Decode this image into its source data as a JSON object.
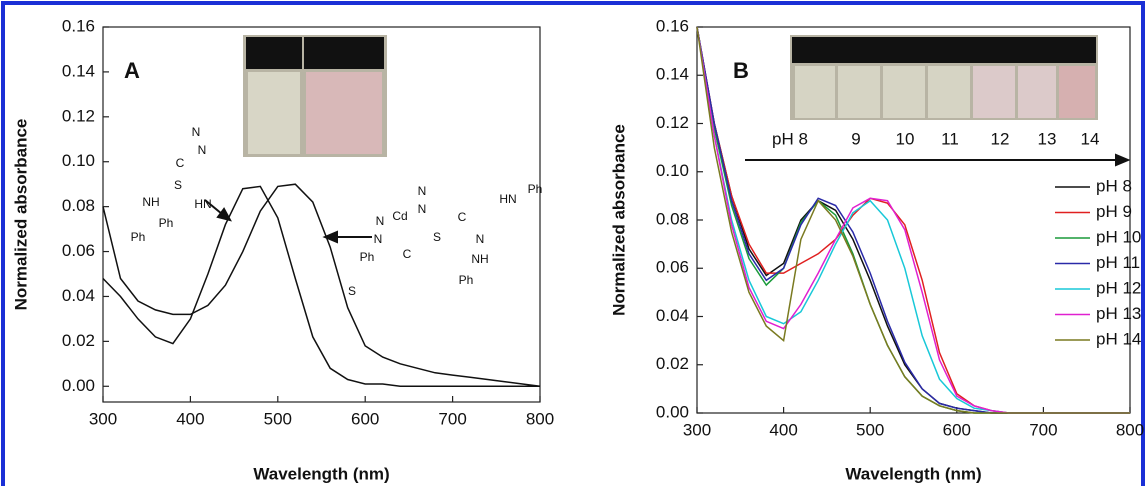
{
  "chart_data": [
    {
      "type": "line",
      "panel_label": "A",
      "x_label": "Wavelength (nm)",
      "y_label": "Normalized absorbance",
      "x": [
        300,
        320,
        340,
        360,
        380,
        400,
        420,
        440,
        460,
        480,
        500,
        520,
        540,
        560,
        580,
        600,
        620,
        640,
        660,
        680,
        700,
        720,
        740,
        760,
        780,
        800
      ],
      "series": [
        {
          "color": "#111111",
          "values": [
            0.048,
            0.04,
            0.03,
            0.022,
            0.019,
            0.03,
            0.05,
            0.072,
            0.088,
            0.089,
            0.075,
            0.048,
            0.022,
            0.008,
            0.003,
            0.001,
            0.001,
            0,
            0,
            0,
            0,
            0,
            0,
            0,
            0,
            0
          ]
        },
        {
          "color": "#111111",
          "values": [
            0.08,
            0.048,
            0.038,
            0.034,
            0.032,
            0.032,
            0.036,
            0.045,
            0.06,
            0.078,
            0.089,
            0.09,
            0.082,
            0.062,
            0.035,
            0.018,
            0.013,
            0.01,
            0.008,
            0.006,
            0.005,
            0.004,
            0.003,
            0.002,
            0.001,
            0
          ]
        }
      ],
      "xlim": [
        300,
        800
      ],
      "xticks": [
        300,
        400,
        500,
        600,
        700,
        800
      ],
      "ylim": [
        -0.007,
        0.16
      ],
      "yticks": [
        {
          "value": 0,
          "label": "0.00"
        },
        {
          "value": 0.02,
          "label": "0.02"
        },
        {
          "value": 0.04,
          "label": "0.04"
        },
        {
          "value": 0.06,
          "label": "0.06"
        },
        {
          "value": 0.08,
          "label": "0.08"
        },
        {
          "value": 0.1,
          "label": "0.10"
        },
        {
          "value": 0.12,
          "label": "0.12"
        },
        {
          "value": 0.14,
          "label": "0.14"
        },
        {
          "value": 0.16,
          "label": "0.16"
        }
      ],
      "annotations": [
        "Ph",
        "N",
        "N",
        "C",
        "S",
        "HN",
        "NH",
        "Ph",
        "Ph",
        "N",
        "N",
        "Cd",
        "S",
        "C",
        "N",
        "N",
        "Ph",
        "S",
        "C",
        "N",
        "NH",
        "Ph",
        "HN",
        "Ph"
      ]
    },
    {
      "type": "line",
      "panel_label": "B",
      "x_label": "Wavelength (nm)",
      "y_label": "Normalized absorbance",
      "x": [
        300,
        320,
        340,
        360,
        380,
        400,
        420,
        440,
        460,
        480,
        500,
        520,
        540,
        560,
        580,
        600,
        620,
        640,
        660,
        680,
        700,
        720,
        740,
        760,
        780,
        800
      ],
      "series": [
        {
          "name": "pH 8",
          "color": "#111111",
          "values": [
            0.16,
            0.12,
            0.09,
            0.068,
            0.057,
            0.062,
            0.08,
            0.088,
            0.084,
            0.072,
            0.055,
            0.036,
            0.02,
            0.01,
            0.004,
            0.002,
            0.001,
            0,
            0,
            0,
            0,
            0,
            0,
            0,
            0,
            0
          ]
        },
        {
          "name": "pH 9",
          "color": "#e02020",
          "values": [
            0.16,
            0.12,
            0.09,
            0.07,
            0.058,
            0.058,
            0.062,
            0.066,
            0.072,
            0.082,
            0.089,
            0.087,
            0.078,
            0.055,
            0.025,
            0.008,
            0.003,
            0.001,
            0,
            0,
            0,
            0,
            0,
            0,
            0,
            0
          ]
        },
        {
          "name": "pH 10",
          "color": "#1a9a3a",
          "values": [
            0.16,
            0.118,
            0.086,
            0.064,
            0.053,
            0.06,
            0.079,
            0.088,
            0.082,
            0.066,
            0.045,
            0.028,
            0.015,
            0.007,
            0.003,
            0.001,
            0,
            0,
            0,
            0,
            0,
            0,
            0,
            0,
            0,
            0
          ]
        },
        {
          "name": "pH 11",
          "color": "#2a2aa8",
          "values": [
            0.16,
            0.12,
            0.088,
            0.066,
            0.055,
            0.06,
            0.078,
            0.089,
            0.086,
            0.075,
            0.058,
            0.038,
            0.021,
            0.01,
            0.004,
            0.002,
            0.001,
            0,
            0,
            0,
            0,
            0,
            0,
            0,
            0,
            0
          ]
        },
        {
          "name": "pH 12",
          "color": "#18c8d8",
          "values": [
            0.16,
            0.115,
            0.08,
            0.055,
            0.04,
            0.037,
            0.042,
            0.055,
            0.07,
            0.083,
            0.088,
            0.08,
            0.06,
            0.032,
            0.014,
            0.006,
            0.002,
            0.001,
            0,
            0,
            0,
            0,
            0,
            0,
            0,
            0
          ]
        },
        {
          "name": "pH 13",
          "color": "#e020d0",
          "values": [
            0.16,
            0.115,
            0.078,
            0.052,
            0.038,
            0.035,
            0.045,
            0.058,
            0.072,
            0.085,
            0.089,
            0.088,
            0.076,
            0.05,
            0.022,
            0.007,
            0.003,
            0.001,
            0,
            0,
            0,
            0,
            0,
            0,
            0,
            0
          ]
        },
        {
          "name": "pH 14",
          "color": "#7a7a20",
          "values": [
            0.16,
            0.11,
            0.075,
            0.05,
            0.036,
            0.03,
            0.072,
            0.088,
            0.08,
            0.065,
            0.045,
            0.028,
            0.015,
            0.007,
            0.003,
            0.001,
            0,
            0,
            0,
            0,
            0,
            0,
            0,
            0,
            0,
            0
          ]
        }
      ],
      "xlim": [
        300,
        800
      ],
      "xticks": [
        300,
        400,
        500,
        600,
        700,
        800
      ],
      "ylim": [
        0,
        0.16
      ],
      "yticks": [
        {
          "value": 0,
          "label": "0.00"
        },
        {
          "value": 0.02,
          "label": "0.02"
        },
        {
          "value": 0.04,
          "label": "0.04"
        },
        {
          "value": 0.06,
          "label": "0.06"
        },
        {
          "value": 0.08,
          "label": "0.08"
        },
        {
          "value": 0.1,
          "label": "0.10"
        },
        {
          "value": 0.12,
          "label": "0.12"
        },
        {
          "value": 0.14,
          "label": "0.14"
        },
        {
          "value": 0.16,
          "label": "0.16"
        }
      ],
      "legend": "right",
      "vial_labels": [
        "pH 8",
        "9",
        "10",
        "11",
        "12",
        "13",
        "14"
      ]
    }
  ]
}
